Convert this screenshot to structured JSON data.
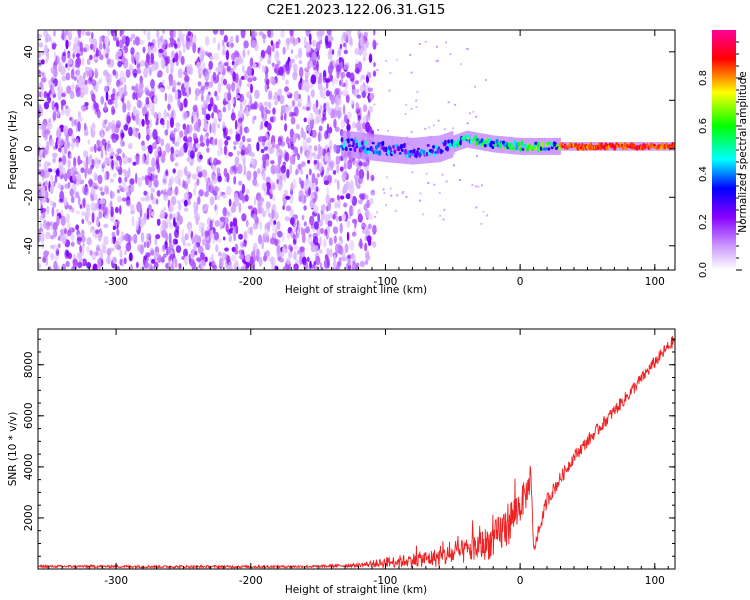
{
  "title": "C2E1.2023.122.06.31.G15",
  "chart_data": [
    {
      "type": "heatmap",
      "xlabel": "Height of straight line (km)",
      "ylabel": "Frequency (Hz)",
      "xlim": [
        -358,
        115
      ],
      "ylim": [
        -50,
        49
      ],
      "xticks": [
        -300,
        -200,
        -100,
        0,
        100
      ],
      "yticks": [
        -40,
        -20,
        0,
        20,
        40
      ],
      "colorbar": {
        "label": "Normalized spectral amplitude",
        "range": [
          0.0,
          1.0
        ],
        "ticks": [
          0.0,
          0.2,
          0.4,
          0.6,
          0.8
        ],
        "colors": [
          "#ffffff",
          "#cc99ff",
          "#8800ff",
          "#0000ff",
          "#00ffff",
          "#00ff00",
          "#ffff00",
          "#ff0000",
          "#ff0099"
        ]
      },
      "regions": [
        {
          "x_range": [
            -358,
            -108
          ],
          "f_range": [
            -50,
            49
          ],
          "amplitude": [
            0.05,
            0.2
          ]
        },
        {
          "x_range": [
            -133,
            -50
          ],
          "f_range": [
            -5,
            6
          ],
          "amplitude": [
            0.15,
            0.45
          ]
        },
        {
          "x_range": [
            -50,
            30
          ],
          "f_range": [
            -2,
            5
          ],
          "amplitude": [
            0.35,
            0.7
          ]
        },
        {
          "x_range": [
            30,
            115
          ],
          "f_range": [
            0,
            3
          ],
          "amplitude": [
            0.75,
            0.95
          ]
        }
      ],
      "peak_track": [
        [
          -130,
          2
        ],
        [
          -100,
          0
        ],
        [
          -80,
          -1
        ],
        [
          -60,
          0
        ],
        [
          -40,
          4
        ],
        [
          -20,
          2
        ],
        [
          0,
          1
        ],
        [
          40,
          1
        ],
        [
          80,
          1
        ],
        [
          115,
          1
        ]
      ]
    },
    {
      "type": "line",
      "xlabel": "Height of straight line (km)",
      "ylabel": "SNR (10 * v/v)",
      "xlim": [
        -358,
        115
      ],
      "ylim": [
        0,
        9400
      ],
      "xticks": [
        -300,
        -200,
        -100,
        0,
        100
      ],
      "yticks": [
        2000,
        4000,
        6000,
        8000
      ],
      "color": "#ee2222",
      "series": [
        {
          "x": [
            -358,
            -300,
            -250,
            -200,
            -150,
            -120,
            -100,
            -80,
            -60,
            -40,
            -20,
            -10,
            0,
            5,
            8,
            10,
            20,
            40,
            60,
            80,
            100,
            115
          ],
          "y": [
            100,
            100,
            90,
            90,
            100,
            150,
            250,
            350,
            450,
            700,
            1100,
            1700,
            2500,
            3000,
            3600,
            700,
            2700,
            4400,
            5600,
            6800,
            8100,
            9000
          ],
          "noise": [
            50,
            50,
            50,
            50,
            50,
            80,
            200,
            280,
            380,
            500,
            700,
            900,
            700,
            600,
            400,
            200,
            300,
            250,
            250,
            250,
            250,
            250
          ]
        }
      ]
    }
  ]
}
